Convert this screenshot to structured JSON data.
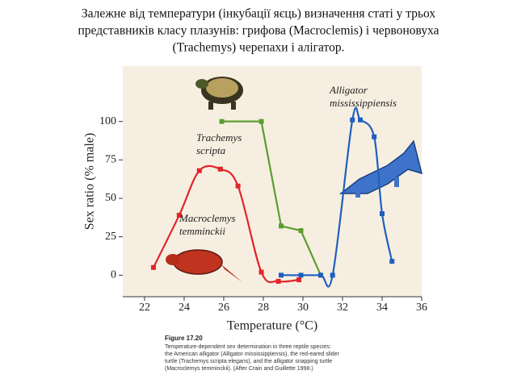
{
  "chart_data": {
    "type": "line",
    "title": [
      "Залежне від температури (інкубації яєць) визначення статі у трьох",
      "представників класу плазунів: грифова (Macroclemis) і червоновуха",
      "(Trachemys) черепахи і алігатор."
    ],
    "xlabel": "Temperature (°C)",
    "ylabel": "Sex ratio (% male)",
    "xlim": [
      20.9,
      36
    ],
    "ylim": [
      -14,
      136
    ],
    "xticks": [
      22,
      24,
      26,
      28,
      30,
      32,
      34,
      36
    ],
    "yticks": [
      0,
      25,
      50,
      75,
      100
    ],
    "grid": false,
    "series": [
      {
        "name": [
          "Macroclemys",
          "temminckii"
        ],
        "color": "#e3242b",
        "x": [
          22.45,
          23.75,
          24.77,
          25.83,
          26.72,
          27.9,
          28.76,
          29.8
        ],
        "values": [
          5,
          39,
          68,
          69,
          58,
          2,
          -4,
          -3
        ]
      },
      {
        "name": [
          "Trachemys",
          "scripta"
        ],
        "color": "#5a9e2f",
        "x": [
          25.9,
          27.9,
          28.9,
          29.9,
          30.9
        ],
        "values": [
          100,
          100,
          32,
          29,
          0
        ]
      },
      {
        "name": [
          "Alligator",
          "mississippiensis"
        ],
        "color": "#1f5fbf",
        "x": [
          28.9,
          29.9,
          30.9,
          31.5,
          32.5,
          32.9,
          33.6,
          34.0,
          34.5
        ],
        "values": [
          0,
          0,
          0,
          0,
          101,
          101,
          90,
          40,
          9
        ]
      }
    ],
    "caption": {
      "label": "Figure 17.20",
      "lines": [
        "Temperature-dependent sex determination in three reptile species:",
        "the American alligator (Alligator mississippiensis), the red-eared slider",
        "turtle (Trachemys scripta elegans), and the alligator snapping turtle",
        "(Macroclemys temminckii). (After Crain and Guillette 1998.)"
      ]
    }
  }
}
